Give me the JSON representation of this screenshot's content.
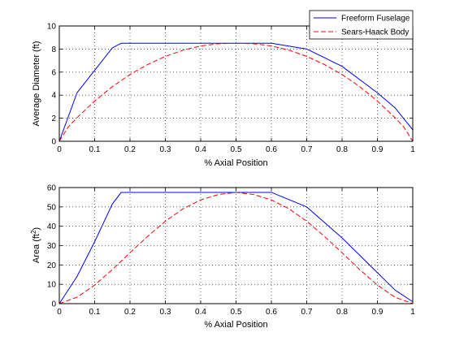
{
  "chart_data": [
    {
      "type": "line",
      "xlabel": "% Axial Position",
      "ylabel": "Average Diameter (ft)",
      "xlim": [
        0,
        1
      ],
      "ylim": [
        0,
        10
      ],
      "xticks": [
        "0",
        "0.1",
        "0.2",
        "0.3",
        "0.4",
        "0.5",
        "0.6",
        "0.7",
        "0.8",
        "0.9",
        "1"
      ],
      "yticks": [
        "0",
        "2",
        "4",
        "6",
        "8",
        "10"
      ],
      "grid": true,
      "legend": "top-right",
      "series": [
        {
          "name": "Freeform Fuselage",
          "color": "#0000ff",
          "style": "solid",
          "x": [
            0,
            0.05,
            0.15,
            0.175,
            0.2,
            0.3,
            0.4,
            0.5,
            0.6,
            0.7,
            0.8,
            0.9,
            0.95,
            1.0
          ],
          "y": [
            0,
            4.2,
            8.1,
            8.5,
            8.5,
            8.5,
            8.5,
            8.5,
            8.5,
            8.0,
            6.5,
            4.2,
            2.9,
            1.0
          ]
        },
        {
          "name": "Sears-Haack Body",
          "color": "#ff0000",
          "style": "dashed",
          "x": [
            0,
            0.025,
            0.05,
            0.1,
            0.15,
            0.2,
            0.25,
            0.3,
            0.35,
            0.4,
            0.45,
            0.5,
            0.55,
            0.6,
            0.65,
            0.7,
            0.75,
            0.8,
            0.85,
            0.9,
            0.95,
            0.975,
            1.0
          ],
          "y": [
            0,
            1.23,
            2.04,
            3.49,
            4.74,
            5.79,
            6.66,
            7.36,
            7.9,
            8.27,
            8.46,
            8.5,
            8.46,
            8.27,
            7.9,
            7.36,
            6.66,
            5.79,
            4.74,
            3.49,
            2.04,
            1.23,
            0
          ]
        }
      ]
    },
    {
      "type": "line",
      "xlabel": "% Axial Position",
      "ylabel_main": "Area (ft",
      "ylabel_sup": "2",
      "ylabel_end": ")",
      "xlim": [
        0,
        1
      ],
      "ylim": [
        0,
        60
      ],
      "xticks": [
        "0",
        "0.1",
        "0.2",
        "0.3",
        "0.4",
        "0.5",
        "0.6",
        "0.7",
        "0.8",
        "0.9",
        "1"
      ],
      "yticks": [
        "0",
        "10",
        "20",
        "30",
        "40",
        "50",
        "60"
      ],
      "grid": true,
      "series": [
        {
          "color": "#0000ff",
          "style": "solid",
          "x": [
            0,
            0.05,
            0.1,
            0.15,
            0.175,
            0.2,
            0.3,
            0.4,
            0.5,
            0.6,
            0.7,
            0.8,
            0.9,
            0.95,
            1.0
          ],
          "y": [
            0,
            14,
            32,
            51.5,
            57.5,
            57.5,
            57.5,
            57.5,
            57.5,
            57.5,
            50,
            34,
            16,
            7,
            1
          ]
        },
        {
          "color": "#ff0000",
          "style": "dashed",
          "x": [
            0,
            0.05,
            0.1,
            0.15,
            0.2,
            0.25,
            0.3,
            0.35,
            0.4,
            0.45,
            0.5,
            0.55,
            0.6,
            0.65,
            0.7,
            0.75,
            0.8,
            0.85,
            0.9,
            0.95,
            1.0
          ],
          "y": [
            0,
            3.3,
            9.6,
            17.6,
            26.3,
            34.8,
            42.6,
            49,
            53.6,
            56.4,
            57.5,
            56.4,
            53.6,
            49,
            42.6,
            34.8,
            26.3,
            17.6,
            9.6,
            3.3,
            0
          ]
        }
      ]
    }
  ]
}
